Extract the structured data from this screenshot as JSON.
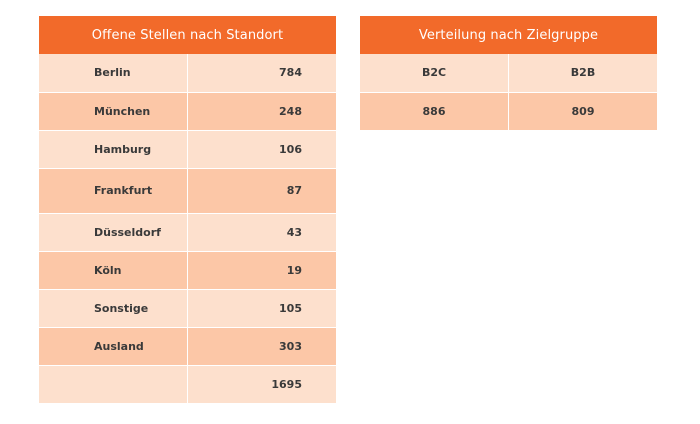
{
  "standort": {
    "title": "Offene Stellen nach Standort",
    "rows": [
      {
        "name": "Berlin",
        "value": "784"
      },
      {
        "name": "München",
        "value": "248"
      },
      {
        "name": "Hamburg",
        "value": "106"
      },
      {
        "name": "Frankfurt",
        "value": "87"
      },
      {
        "name": "Düsseldorf",
        "value": "43"
      },
      {
        "name": "Köln",
        "value": "19"
      },
      {
        "name": "Sonstige",
        "value": "105"
      },
      {
        "name": "Ausland",
        "value": "303"
      }
    ],
    "total": {
      "name": "",
      "value": "1695"
    }
  },
  "zielgruppe": {
    "title": "Verteilung nach Zielgruppe",
    "headers": [
      "B2C",
      "B2B"
    ],
    "values": [
      "886",
      "809"
    ]
  },
  "colors": {
    "header": "#f26a2a",
    "row_light": "#fde0cd",
    "row_dark": "#fcc7a7"
  }
}
